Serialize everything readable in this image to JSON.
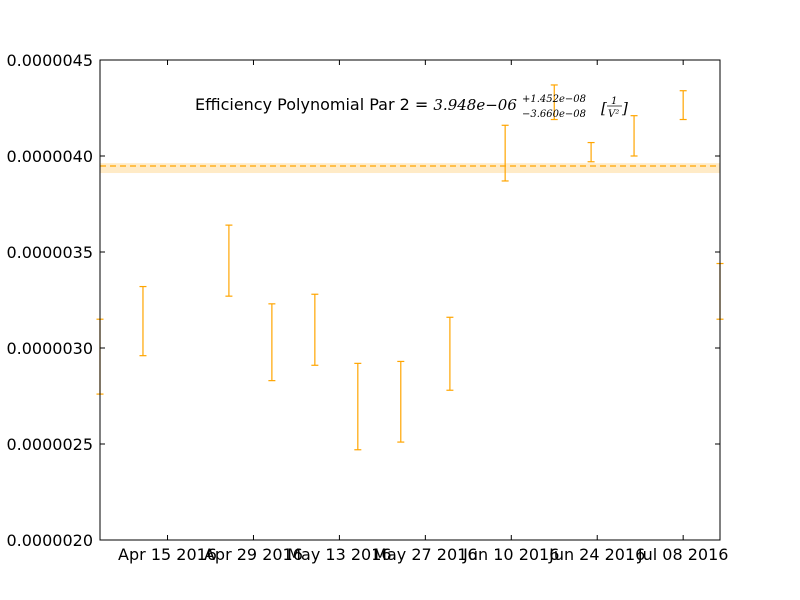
{
  "chart_data": {
    "type": "scatter",
    "title": "",
    "xlabel": "",
    "ylabel": "",
    "x_tick_labels": [
      "Apr 15 2016",
      "Apr 29 2016",
      "May 13 2016",
      "May 27 2016",
      "Jun 10 2016",
      "Jun 24 2016",
      "Jul 08 2016"
    ],
    "x_tick_dates": [
      "2016-04-15",
      "2016-04-29",
      "2016-05-13",
      "2016-05-27",
      "2016-06-10",
      "2016-06-24",
      "2016-07-08"
    ],
    "xlim": [
      "2016-04-04",
      "2016-07-14"
    ],
    "y_tick_labels": [
      "0.0000020",
      "0.0000025",
      "0.0000030",
      "0.0000035",
      "0.0000040",
      "0.0000045"
    ],
    "y_ticks": [
      2e-06,
      2.5e-06,
      3e-06,
      3.5e-06,
      4e-06,
      4.5e-06
    ],
    "ylim": [
      2e-06,
      4.5e-06
    ],
    "grid": false,
    "color": "#FFA500",
    "fit": {
      "value": 3.948e-06,
      "err_up": 1.452e-08,
      "err_down": 3.66e-08
    },
    "annotation": {
      "prefix": "Efficiency Polynomial Par 2 = ",
      "value": "3.948e−06",
      "sup": "+1.452e−08",
      "sub": "−3.660e−08",
      "unit_num": "1",
      "unit_den": "V²"
    },
    "series": [
      {
        "points": [
          {
            "x": "2016-04-04",
            "low": 2.76e-06,
            "high": 3.15e-06
          },
          {
            "x": "2016-04-11",
            "low": 2.96e-06,
            "high": 3.32e-06
          },
          {
            "x": "2016-04-25",
            "low": 3.27e-06,
            "high": 3.64e-06
          },
          {
            "x": "2016-05-02",
            "low": 2.83e-06,
            "high": 3.23e-06
          },
          {
            "x": "2016-05-09",
            "low": 2.91e-06,
            "high": 3.28e-06
          },
          {
            "x": "2016-05-16",
            "low": 2.47e-06,
            "high": 2.92e-06
          },
          {
            "x": "2016-05-23",
            "low": 2.51e-06,
            "high": 2.93e-06
          },
          {
            "x": "2016-05-31",
            "low": 2.78e-06,
            "high": 3.16e-06
          },
          {
            "x": "2016-06-09",
            "low": 3.87e-06,
            "high": 4.16e-06
          },
          {
            "x": "2016-06-17",
            "low": 4.19e-06,
            "high": 4.37e-06
          },
          {
            "x": "2016-06-23",
            "low": 3.97e-06,
            "high": 4.07e-06
          },
          {
            "x": "2016-06-30",
            "low": 4e-06,
            "high": 4.21e-06
          },
          {
            "x": "2016-07-08",
            "low": 4.19e-06,
            "high": 4.34e-06
          },
          {
            "x": "2016-07-14",
            "low": 3.15e-06,
            "high": 3.44e-06
          }
        ]
      }
    ]
  }
}
